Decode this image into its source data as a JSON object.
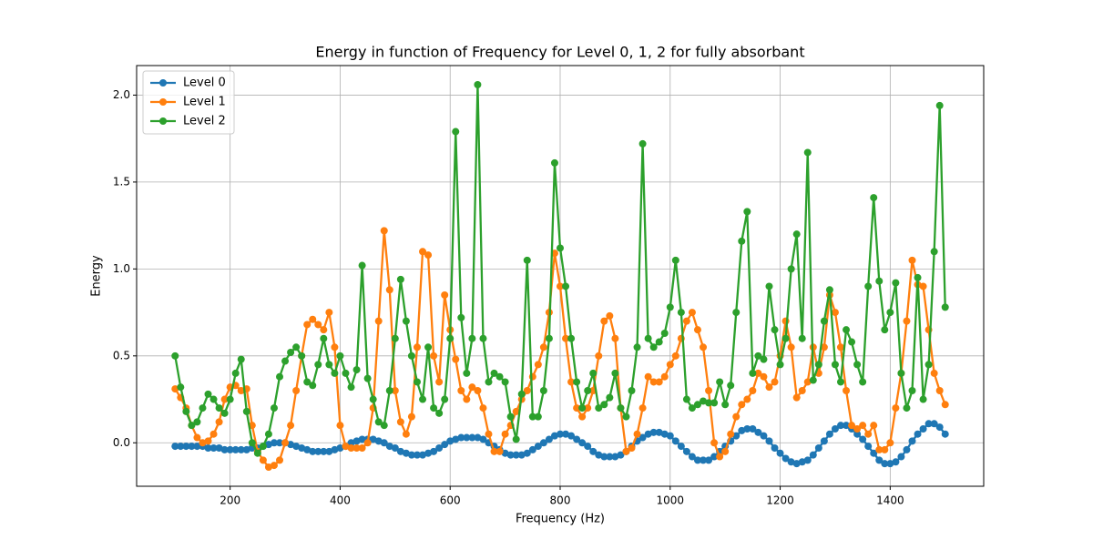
{
  "chart_data": {
    "type": "line",
    "title": "Energy in function of Frequency for Level 0, 1, 2 for fully absorbant",
    "x_label": "Frequency (Hz)",
    "y_label": "Energy",
    "xlim": [
      30,
      1570
    ],
    "ylim": [
      -0.25,
      2.17
    ],
    "xticks": [
      200,
      400,
      600,
      800,
      1000,
      1200,
      1400
    ],
    "yticks": [
      {
        "value": 0,
        "label": "0.0"
      },
      0.5,
      {
        "value": 1,
        "label": "1.0"
      },
      1.5,
      {
        "value": 2,
        "label": "2.0"
      }
    ],
    "grid": true,
    "legend": "upper left",
    "x": [
      100,
      110,
      120,
      130,
      140,
      150,
      160,
      170,
      180,
      190,
      200,
      210,
      220,
      230,
      240,
      250,
      260,
      270,
      280,
      290,
      300,
      310,
      320,
      330,
      340,
      350,
      360,
      370,
      380,
      390,
      400,
      410,
      420,
      430,
      440,
      450,
      460,
      470,
      480,
      490,
      500,
      510,
      520,
      530,
      540,
      550,
      560,
      570,
      580,
      590,
      600,
      610,
      620,
      630,
      640,
      650,
      660,
      670,
      680,
      690,
      700,
      710,
      720,
      730,
      740,
      750,
      760,
      770,
      780,
      790,
      800,
      810,
      820,
      830,
      840,
      850,
      860,
      870,
      880,
      890,
      900,
      910,
      920,
      930,
      940,
      950,
      960,
      970,
      980,
      990,
      1000,
      1010,
      1020,
      1030,
      1040,
      1050,
      1060,
      1070,
      1080,
      1090,
      1100,
      1110,
      1120,
      1130,
      1140,
      1150,
      1160,
      1170,
      1180,
      1190,
      1200,
      1210,
      1220,
      1230,
      1240,
      1250,
      1260,
      1270,
      1280,
      1290,
      1300,
      1310,
      1320,
      1330,
      1340,
      1350,
      1360,
      1370,
      1380,
      1390,
      1400,
      1410,
      1420,
      1430,
      1440,
      1450,
      1460,
      1470,
      1480,
      1490,
      1500
    ],
    "series": [
      {
        "name": "Level 0",
        "color": "#1f77b4",
        "values": [
          -0.02,
          -0.02,
          -0.02,
          -0.02,
          -0.02,
          -0.02,
          -0.03,
          -0.03,
          -0.03,
          -0.04,
          -0.04,
          -0.04,
          -0.04,
          -0.04,
          -0.03,
          -0.03,
          -0.02,
          -0.01,
          0.0,
          0.0,
          0.0,
          -0.01,
          -0.02,
          -0.03,
          -0.04,
          -0.05,
          -0.05,
          -0.05,
          -0.05,
          -0.04,
          -0.03,
          -0.02,
          0.0,
          0.01,
          0.02,
          0.02,
          0.02,
          0.01,
          0.0,
          -0.02,
          -0.03,
          -0.05,
          -0.06,
          -0.07,
          -0.07,
          -0.07,
          -0.06,
          -0.05,
          -0.03,
          -0.01,
          0.01,
          0.02,
          0.03,
          0.03,
          0.03,
          0.03,
          0.02,
          0.0,
          -0.02,
          -0.04,
          -0.06,
          -0.07,
          -0.07,
          -0.07,
          -0.06,
          -0.04,
          -0.02,
          0.0,
          0.02,
          0.04,
          0.05,
          0.05,
          0.04,
          0.02,
          0.0,
          -0.02,
          -0.05,
          -0.07,
          -0.08,
          -0.08,
          -0.08,
          -0.07,
          -0.05,
          -0.02,
          0.01,
          0.03,
          0.05,
          0.06,
          0.06,
          0.05,
          0.04,
          0.01,
          -0.02,
          -0.05,
          -0.08,
          -0.1,
          -0.1,
          -0.1,
          -0.08,
          -0.05,
          -0.02,
          0.01,
          0.04,
          0.07,
          0.08,
          0.08,
          0.06,
          0.04,
          0.01,
          -0.03,
          -0.06,
          -0.09,
          -0.11,
          -0.12,
          -0.11,
          -0.1,
          -0.07,
          -0.03,
          0.01,
          0.05,
          0.08,
          0.1,
          0.1,
          0.08,
          0.05,
          0.02,
          -0.02,
          -0.06,
          -0.1,
          -0.12,
          -0.12,
          -0.11,
          -0.08,
          -0.04,
          0.01,
          0.05,
          0.08,
          0.11,
          0.11,
          0.09,
          0.05
        ]
      },
      {
        "name": "Level 1",
        "color": "#ff7f0e",
        "values": [
          0.31,
          0.26,
          0.2,
          0.1,
          0.03,
          0.0,
          0.01,
          0.05,
          0.12,
          0.25,
          0.32,
          0.33,
          0.3,
          0.31,
          0.1,
          -0.05,
          -0.1,
          -0.14,
          -0.13,
          -0.1,
          0.0,
          0.1,
          0.3,
          0.5,
          0.68,
          0.71,
          0.68,
          0.65,
          0.75,
          0.55,
          0.1,
          -0.02,
          -0.03,
          -0.03,
          -0.03,
          0.0,
          0.2,
          0.7,
          1.22,
          0.88,
          0.3,
          0.12,
          0.05,
          0.15,
          0.55,
          1.1,
          1.08,
          0.5,
          0.35,
          0.85,
          0.65,
          0.48,
          0.3,
          0.25,
          0.32,
          0.3,
          0.2,
          0.05,
          -0.05,
          -0.05,
          0.05,
          0.1,
          0.18,
          0.25,
          0.3,
          0.38,
          0.45,
          0.55,
          0.75,
          1.09,
          0.9,
          0.6,
          0.35,
          0.2,
          0.15,
          0.2,
          0.3,
          0.5,
          0.7,
          0.73,
          0.6,
          0.2,
          -0.05,
          -0.03,
          0.05,
          0.2,
          0.38,
          0.35,
          0.35,
          0.38,
          0.45,
          0.5,
          0.6,
          0.7,
          0.75,
          0.65,
          0.55,
          0.3,
          0.0,
          -0.08,
          -0.05,
          0.05,
          0.15,
          0.22,
          0.25,
          0.3,
          0.4,
          0.38,
          0.32,
          0.35,
          0.5,
          0.7,
          0.55,
          0.26,
          0.3,
          0.35,
          0.55,
          0.4,
          0.55,
          0.85,
          0.75,
          0.55,
          0.3,
          0.1,
          0.08,
          0.1,
          0.05,
          0.1,
          -0.04,
          -0.04,
          0.0,
          0.2,
          0.4,
          0.7,
          1.05,
          0.91,
          0.9,
          0.65,
          0.4,
          0.3,
          0.22
        ]
      },
      {
        "name": "Level 2",
        "color": "#2ca02c",
        "values": [
          0.5,
          0.32,
          0.18,
          0.1,
          0.12,
          0.2,
          0.28,
          0.25,
          0.2,
          0.17,
          0.25,
          0.4,
          0.48,
          0.18,
          0.0,
          -0.06,
          -0.02,
          0.05,
          0.2,
          0.38,
          0.47,
          0.52,
          0.55,
          0.5,
          0.35,
          0.33,
          0.45,
          0.6,
          0.45,
          0.4,
          0.5,
          0.4,
          0.32,
          0.42,
          1.02,
          0.37,
          0.25,
          0.12,
          0.1,
          0.3,
          0.6,
          0.94,
          0.7,
          0.5,
          0.35,
          0.25,
          0.55,
          0.2,
          0.17,
          0.25,
          0.6,
          1.79,
          0.72,
          0.4,
          0.6,
          2.06,
          0.6,
          0.35,
          0.4,
          0.38,
          0.35,
          0.15,
          0.02,
          0.28,
          1.05,
          0.15,
          0.15,
          0.3,
          0.6,
          1.61,
          1.12,
          0.9,
          0.6,
          0.35,
          0.2,
          0.3,
          0.4,
          0.2,
          0.22,
          0.26,
          0.4,
          0.2,
          0.15,
          0.3,
          0.55,
          1.72,
          0.6,
          0.55,
          0.58,
          0.63,
          0.78,
          1.05,
          0.75,
          0.25,
          0.2,
          0.22,
          0.24,
          0.23,
          0.23,
          0.35,
          0.22,
          0.33,
          0.75,
          1.16,
          1.33,
          0.4,
          0.5,
          0.48,
          0.9,
          0.65,
          0.45,
          0.6,
          1.0,
          1.2,
          0.6,
          1.67,
          0.36,
          0.45,
          0.7,
          0.88,
          0.45,
          0.35,
          0.65,
          0.58,
          0.45,
          0.35,
          0.9,
          1.41,
          0.93,
          0.65,
          0.75,
          0.92,
          0.4,
          0.2,
          0.3,
          0.95,
          0.25,
          0.45,
          1.1,
          1.94,
          0.78
        ]
      }
    ]
  }
}
